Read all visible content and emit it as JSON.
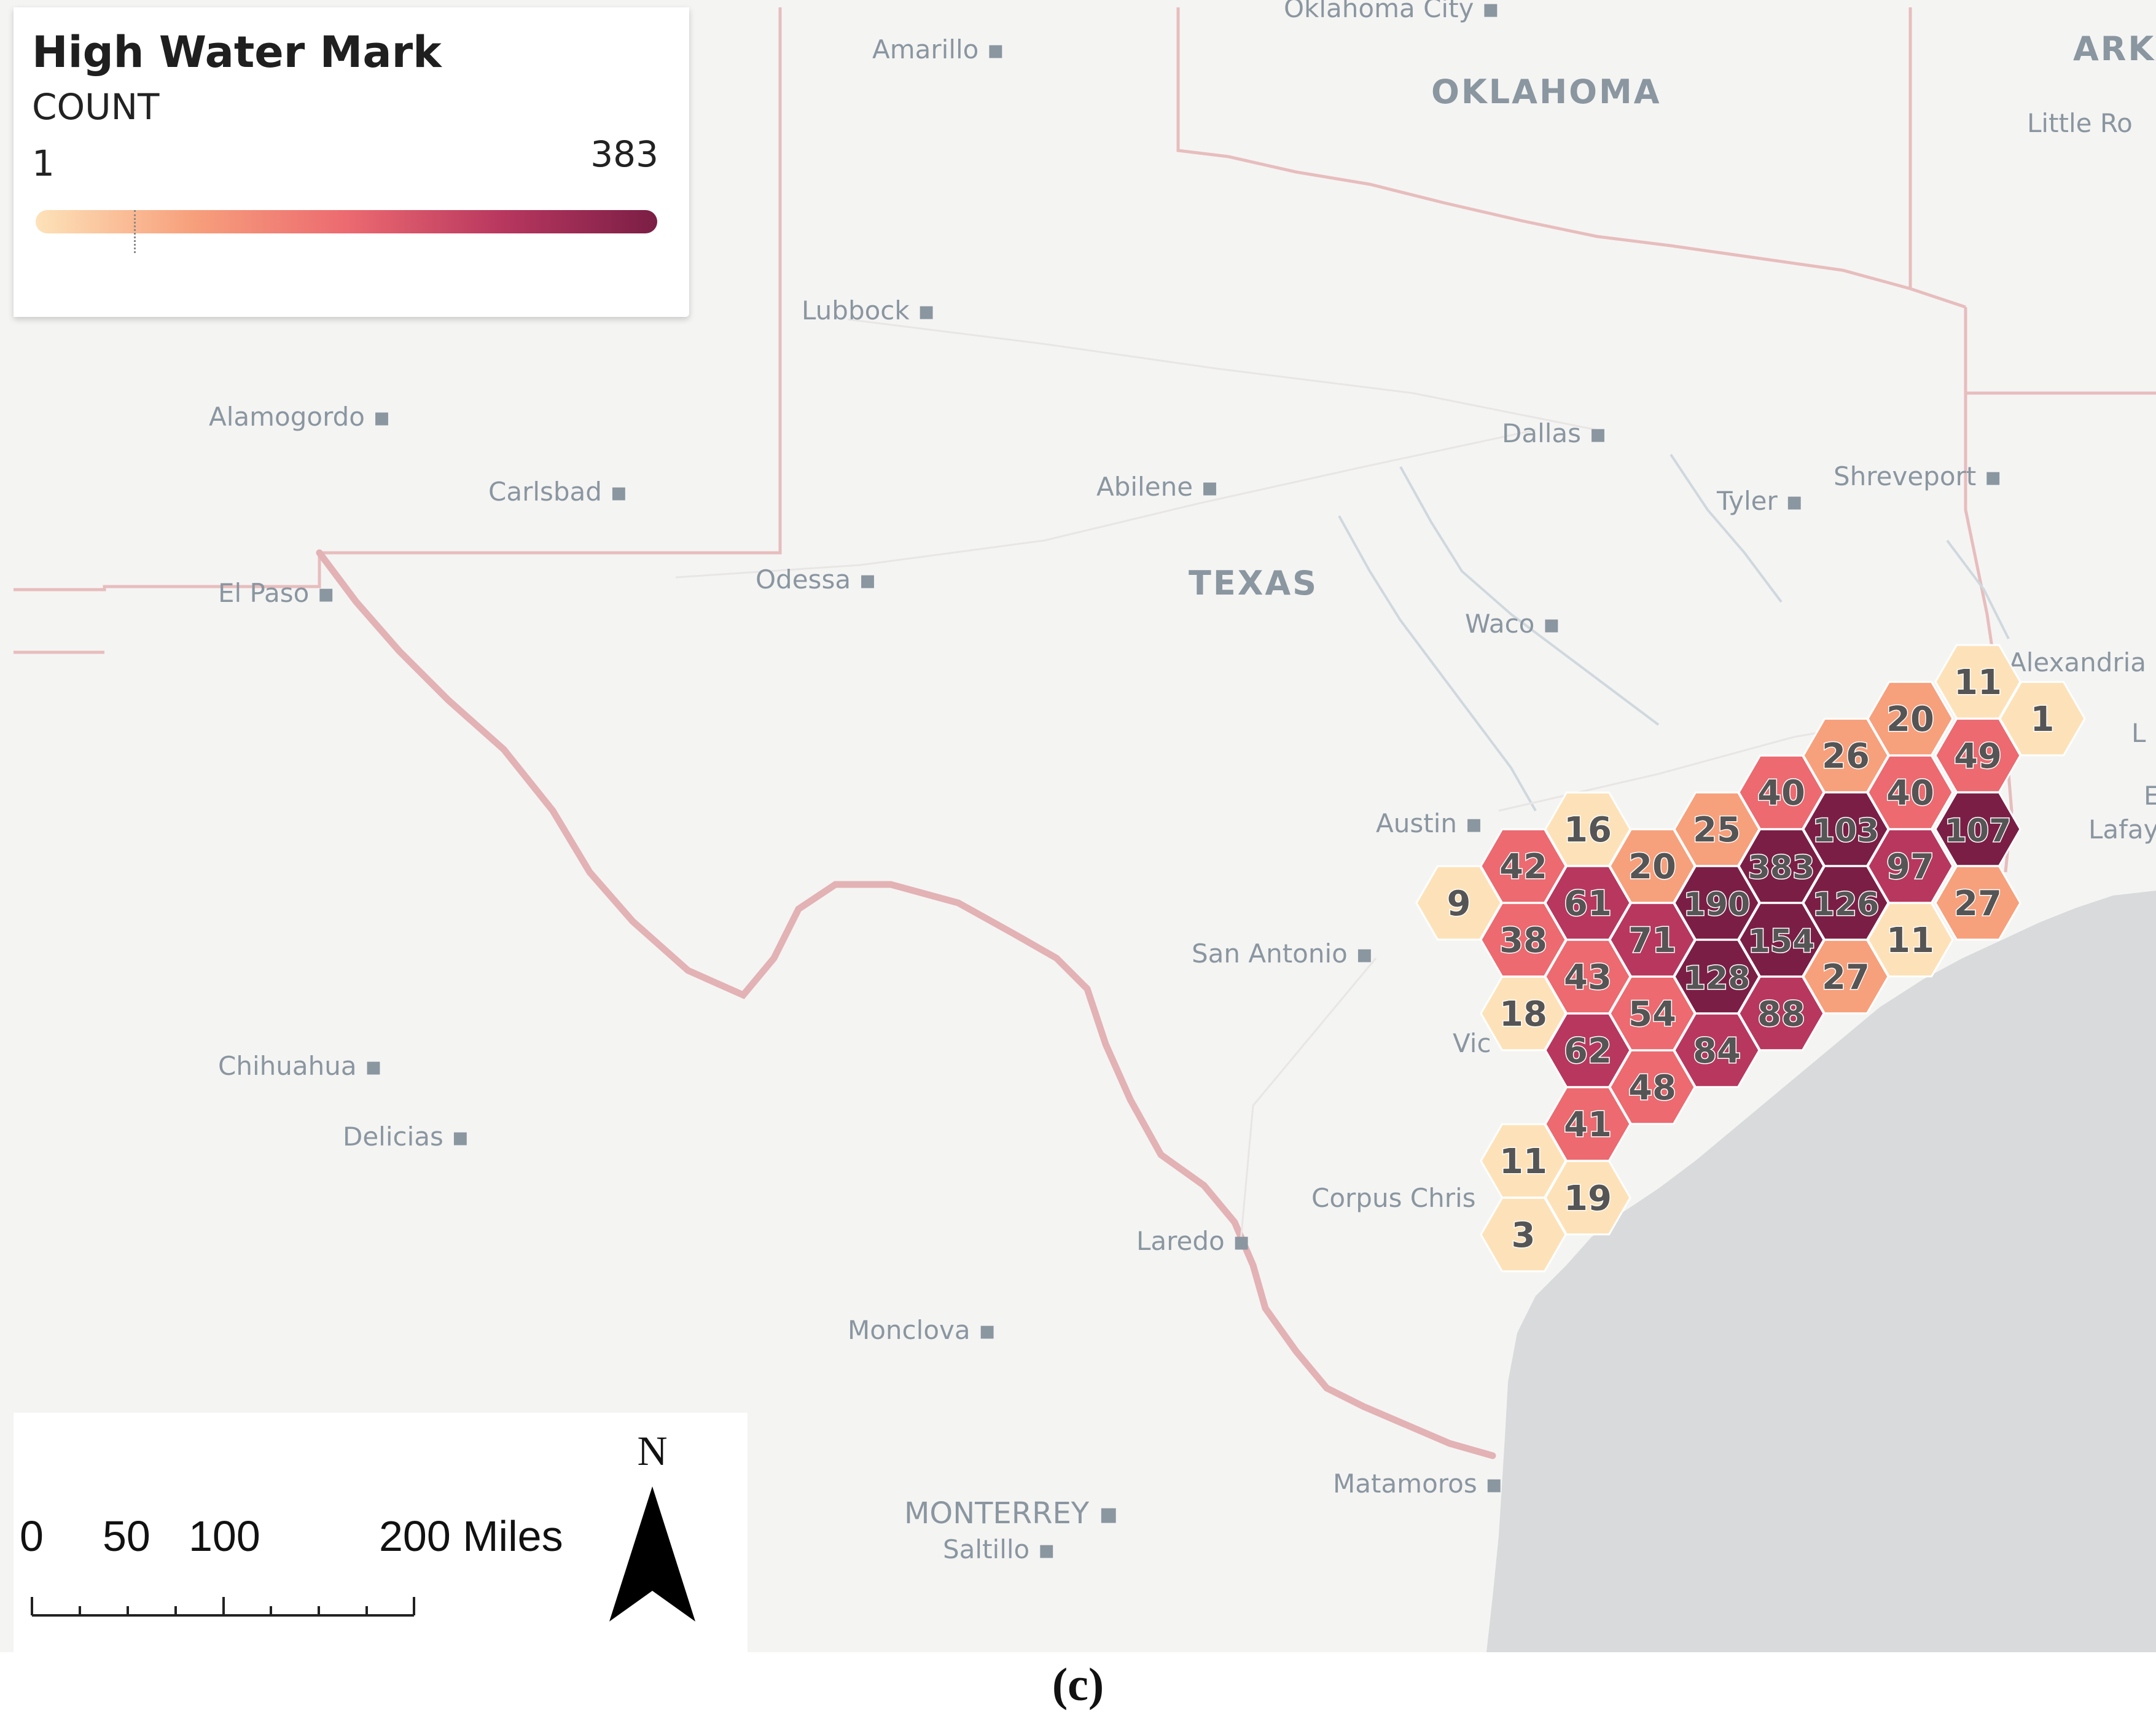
{
  "legend": {
    "title": "High Water Mark",
    "subtitle": "COUNT",
    "min": "1",
    "max": "383",
    "gradient": [
      "#fde2b9",
      "#f7a07c",
      "#ec6a70",
      "#b8375f",
      "#7b1e45"
    ]
  },
  "places": [
    {
      "name": "Oklahoma City",
      "kind": "city"
    },
    {
      "name": "Amarillo",
      "kind": "city"
    },
    {
      "name": "OKLAHOMA",
      "kind": "state"
    },
    {
      "name": "ARKA",
      "kind": "state"
    },
    {
      "name": "Little Ro",
      "kind": "city"
    },
    {
      "name": "Lubbock",
      "kind": "city"
    },
    {
      "name": "Alamogordo",
      "kind": "city"
    },
    {
      "name": "Dallas",
      "kind": "city"
    },
    {
      "name": "Carlsbad",
      "kind": "city"
    },
    {
      "name": "Abilene",
      "kind": "city"
    },
    {
      "name": "Shreveport",
      "kind": "city"
    },
    {
      "name": "Tyler",
      "kind": "city"
    },
    {
      "name": "Odessa",
      "kind": "city"
    },
    {
      "name": "TEXAS",
      "kind": "state"
    },
    {
      "name": "El Paso",
      "kind": "city"
    },
    {
      "name": "Waco",
      "kind": "city"
    },
    {
      "name": "Alexandria",
      "kind": "city"
    },
    {
      "name": "Austin",
      "kind": "city"
    },
    {
      "name": "San Antonio",
      "kind": "city"
    },
    {
      "name": "Vic",
      "kind": "city"
    },
    {
      "name": "Chihuahua",
      "kind": "city"
    },
    {
      "name": "Delicias",
      "kind": "city"
    },
    {
      "name": "Corpus Chris",
      "kind": "city"
    },
    {
      "name": "Laredo",
      "kind": "city"
    },
    {
      "name": "Monclova",
      "kind": "city"
    },
    {
      "name": "Matamoros",
      "kind": "city"
    },
    {
      "name": "MONTERREY",
      "kind": "metro"
    },
    {
      "name": "Saltillo",
      "kind": "city"
    },
    {
      "name": "L",
      "kind": "city"
    },
    {
      "name": "E",
      "kind": "city"
    },
    {
      "name": "Lafay",
      "kind": "city"
    }
  ],
  "hexbins": [
    {
      "count": "11",
      "value": 11
    },
    {
      "count": "1",
      "value": 1
    },
    {
      "count": "20",
      "value": 20
    },
    {
      "count": "26",
      "value": 26
    },
    {
      "count": "49",
      "value": 49
    },
    {
      "count": "40",
      "value": 40
    },
    {
      "count": "40",
      "value": 40
    },
    {
      "count": "16",
      "value": 16
    },
    {
      "count": "25",
      "value": 25
    },
    {
      "count": "103",
      "value": 103
    },
    {
      "count": "107",
      "value": 107
    },
    {
      "count": "42",
      "value": 42
    },
    {
      "count": "20",
      "value": 20
    },
    {
      "count": "383",
      "value": 383
    },
    {
      "count": "97",
      "value": 97
    },
    {
      "count": "9",
      "value": 9
    },
    {
      "count": "61",
      "value": 61
    },
    {
      "count": "190",
      "value": 190
    },
    {
      "count": "126",
      "value": 126
    },
    {
      "count": "27",
      "value": 27
    },
    {
      "count": "38",
      "value": 38
    },
    {
      "count": "71",
      "value": 71
    },
    {
      "count": "154",
      "value": 154
    },
    {
      "count": "11",
      "value": 11
    },
    {
      "count": "43",
      "value": 43
    },
    {
      "count": "128",
      "value": 128
    },
    {
      "count": "27",
      "value": 27
    },
    {
      "count": "18",
      "value": 18
    },
    {
      "count": "54",
      "value": 54
    },
    {
      "count": "88",
      "value": 88
    },
    {
      "count": "62",
      "value": 62
    },
    {
      "count": "84",
      "value": 84
    },
    {
      "count": "48",
      "value": 48
    },
    {
      "count": "41",
      "value": 41
    },
    {
      "count": "11",
      "value": 11
    },
    {
      "count": "19",
      "value": 19
    },
    {
      "count": "3",
      "value": 3
    }
  ],
  "scale": {
    "labels": [
      "0",
      "50",
      "100",
      "200 Miles"
    ]
  },
  "north_label": "N",
  "caption": "(c)"
}
